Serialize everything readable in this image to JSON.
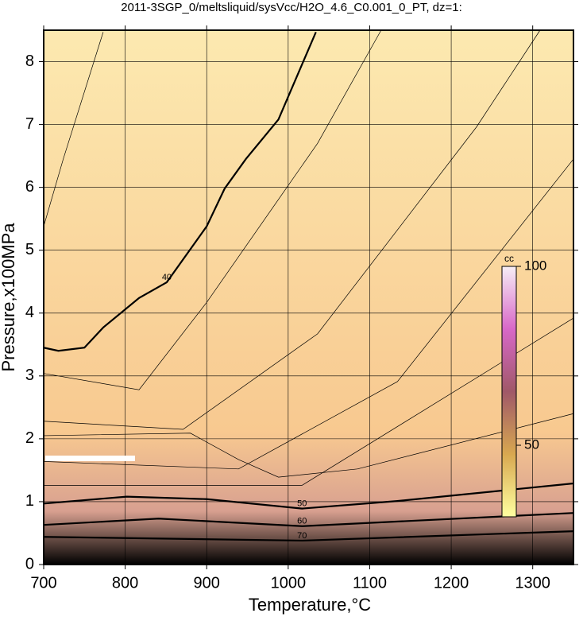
{
  "chart_data": {
    "type": "contour",
    "title": "2011-3SGP_0/meltsliquid/sysVcc/H2O_4.6_C0.001_0_PT, dz=1:",
    "xlabel": "Temperature,°C",
    "ylabel": "Pressure,x100MPa",
    "xlim": [
      700,
      1350
    ],
    "ylim": [
      0,
      8.5
    ],
    "xticks": [
      700,
      800,
      900,
      1000,
      1100,
      1200,
      1300
    ],
    "yticks": [
      0,
      1,
      2,
      3,
      4,
      5,
      6,
      7,
      8
    ],
    "grid": true,
    "background": [
      "#fce9b0",
      "#f8c990",
      "#d8a090",
      "#000000"
    ],
    "contours": [
      {
        "level": 38,
        "labeled": false,
        "x": [
          700,
          724,
          773
        ],
        "y": [
          5.38,
          6.45,
          8.47
        ]
      },
      {
        "level": 40,
        "labeled": true,
        "x": [
          700,
          718,
          750,
          773,
          817,
          851,
          900,
          922,
          948,
          988,
          1034
        ],
        "y": [
          3.45,
          3.4,
          3.45,
          3.77,
          4.24,
          4.49,
          5.38,
          5.98,
          6.45,
          7.08,
          8.47
        ]
      },
      {
        "level": 42,
        "labeled": false,
        "x": [
          700,
          817,
          900,
          1036,
          1114
        ],
        "y": [
          3.04,
          2.78,
          4.17,
          6.7,
          8.5
        ]
      },
      {
        "level": 44,
        "labeled": false,
        "x": [
          700,
          871,
          1036,
          1231,
          1309
        ],
        "y": [
          2.28,
          2.15,
          3.67,
          6.96,
          8.5
        ]
      },
      {
        "level": 45,
        "labeled": false,
        "x": [
          700,
          880,
          939,
          988,
          1085,
          1350
        ],
        "y": [
          2.05,
          2.09,
          1.67,
          1.39,
          1.52,
          2.4
        ]
      },
      {
        "level": 46,
        "labeled": false,
        "x": [
          700,
          939,
          1134,
          1350
        ],
        "y": [
          1.64,
          1.52,
          2.91,
          6.45
        ]
      },
      {
        "level": 48,
        "labeled": false,
        "x": [
          700,
          1017,
          1350
        ],
        "y": [
          1.26,
          1.26,
          3.92
        ]
      },
      {
        "level": 50,
        "labeled": true,
        "x": [
          700,
          802,
          900,
          1017,
          1134,
          1350
        ],
        "y": [
          0.97,
          1.08,
          1.04,
          0.89,
          1.01,
          1.29
        ]
      },
      {
        "level": 60,
        "labeled": true,
        "x": [
          700,
          841,
          1017,
          1350
        ],
        "y": [
          0.63,
          0.73,
          0.61,
          0.82
        ]
      },
      {
        "level": 70,
        "labeled": true,
        "x": [
          700,
          1017,
          1350
        ],
        "y": [
          0.44,
          0.38,
          0.53
        ]
      }
    ],
    "colorbar": {
      "label": "cc",
      "lim": [
        30,
        100
      ],
      "ticks": [
        50,
        100
      ],
      "colors": [
        "#ffffa0",
        "#d8a850",
        "#a05868",
        "#d868c8",
        "#f6eef6"
      ]
    }
  }
}
